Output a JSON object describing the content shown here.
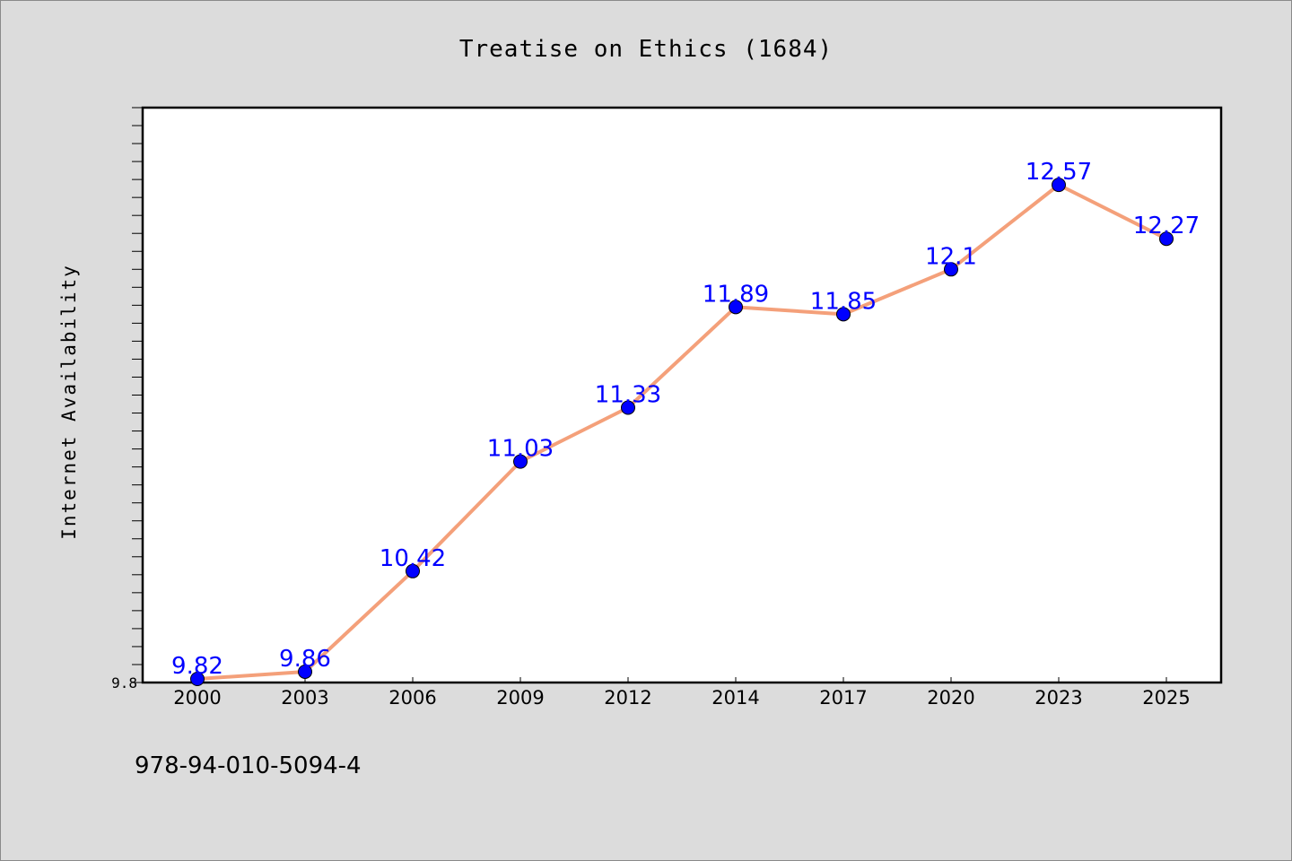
{
  "chart_data": {
    "type": "line",
    "title": "Treatise on Ethics (1684)",
    "xlabel": "",
    "ylabel": "Internet Availability",
    "categories": [
      "2000",
      "2003",
      "2006",
      "2009",
      "2012",
      "2014",
      "2017",
      "2020",
      "2023",
      "2025"
    ],
    "series": [
      {
        "values": [
          9.82,
          9.86,
          10.42,
          11.03,
          11.33,
          11.89,
          11.85,
          12.1,
          12.57,
          12.27
        ],
        "data_labels": [
          "9.82",
          "9.86",
          "10.42",
          "11.03",
          "11.33",
          "11.89",
          "11.85",
          "12.1",
          "12.57",
          "12.27"
        ],
        "line_color": "#f4a07a",
        "marker_color": "#0000ff"
      }
    ],
    "ylim": [
      9.8,
      13.0
    ],
    "y_tick_labels": [
      "9.8"
    ],
    "grid": false,
    "legend": "none"
  },
  "footer": {
    "isbn": "978-94-010-5094-4"
  },
  "colors": {
    "background": "#dcdcdc",
    "plot_background": "#ffffff",
    "line": "#f4a07a",
    "marker": "#0000ff",
    "data_label": "#0000ff"
  }
}
